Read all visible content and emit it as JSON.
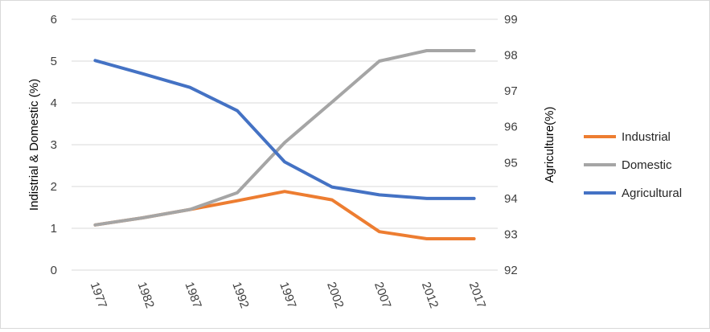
{
  "chart_data": {
    "type": "line",
    "title": "",
    "categories": [
      "1977",
      "1982",
      "1987",
      "1992",
      "1997",
      "2002",
      "2007",
      "2012",
      "2017"
    ],
    "y_left": {
      "label": "Indistrial & Domestic  (%)",
      "lim": [
        0,
        6
      ],
      "ticks": [
        "0",
        "1",
        "2",
        "3",
        "4",
        "5",
        "6"
      ]
    },
    "y_right": {
      "label": "Agriculture(%)",
      "lim": [
        92,
        99
      ],
      "ticks": [
        "92",
        "93",
        "94",
        "95",
        "96",
        "97",
        "98",
        "99"
      ]
    },
    "series": [
      {
        "name": "Industrial",
        "axis": "left",
        "color": "#ED7D31",
        "values": [
          1.08,
          1.25,
          1.45,
          1.66,
          1.88,
          1.68,
          0.92,
          0.75,
          0.75
        ]
      },
      {
        "name": "Domestic",
        "axis": "left",
        "color": "#A5A5A5",
        "values": [
          1.08,
          1.25,
          1.45,
          1.85,
          3.05,
          4.02,
          5.0,
          5.25,
          5.25
        ]
      },
      {
        "name": "Agricultural",
        "axis": "right",
        "color": "#4472C4",
        "values": [
          97.85,
          97.48,
          97.1,
          96.45,
          95.02,
          94.32,
          94.1,
          94.0,
          94.0
        ]
      }
    ],
    "legend_position": "right",
    "grid": true,
    "x_tick_rotation": "vertical"
  }
}
